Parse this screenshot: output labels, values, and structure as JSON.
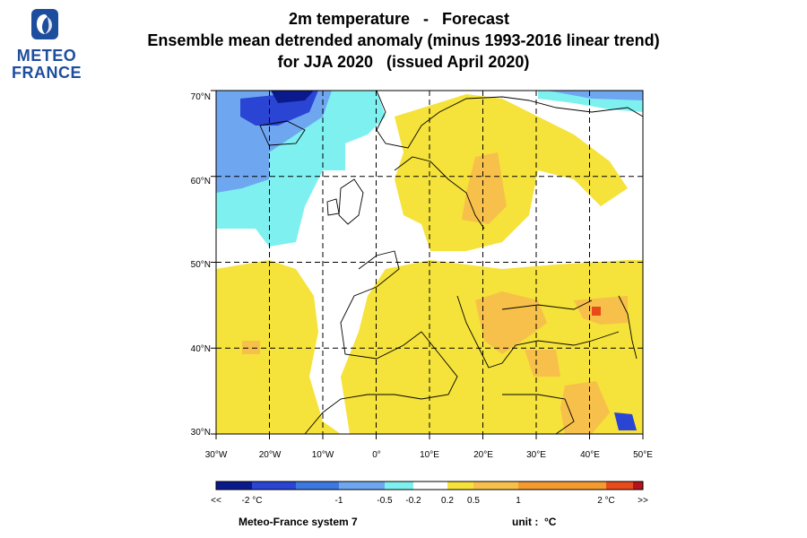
{
  "logo": {
    "line1": "METEO",
    "line2": "FRANCE"
  },
  "title": {
    "line1": "2m temperature   -   Forecast",
    "line2": "Ensemble mean detrended anomaly (minus 1993-2016 linear trend)",
    "line3": "for JJA 2020   (issued April 2020)"
  },
  "map": {
    "lat_labels": [
      "70°N",
      "60°N",
      "50°N",
      "40°N",
      "30°N"
    ],
    "lon_labels": [
      "30°W",
      "20°W",
      "10°W",
      "0°",
      "10°E",
      "20°E",
      "30°E",
      "40°E",
      "50°E"
    ],
    "lon_range": [
      -30,
      50
    ],
    "lat_range": [
      30,
      70
    ],
    "gridlines": "dashed every 10 degrees"
  },
  "colorbar": {
    "labels": [
      "<<",
      "-2 °C",
      "-1",
      "-0.5",
      "-0.2",
      "0.2",
      "0.5",
      "1",
      "2 °C",
      ">>"
    ],
    "colors": [
      "#0a1a8c",
      "#2a45d4",
      "#3c78e0",
      "#6fa6f0",
      "#7ef0f0",
      "#ffffff",
      "#f5e23a",
      "#f7c04a",
      "#f59a2e",
      "#e84a1a",
      "#b5121b"
    ]
  },
  "footer": {
    "system": "Meteo-France system 7",
    "unit": "unit :  °C"
  }
}
